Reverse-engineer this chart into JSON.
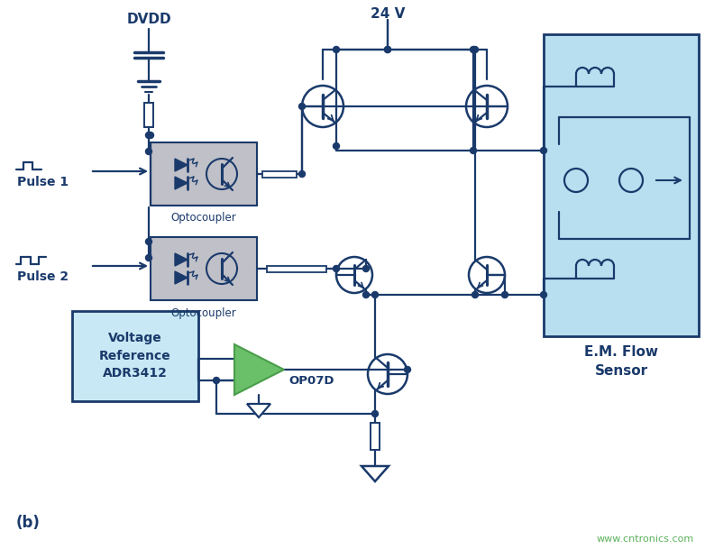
{
  "bg_color": "#ffffff",
  "dark_blue": "#1a3a6b",
  "light_blue": "#b8dff0",
  "light_blue2": "#c8e8f5",
  "gray": "#c0c0c8",
  "green": "#6abf69",
  "green_dark": "#4a9e4a",
  "url_color": "#5ab05a",
  "title": "(b)",
  "label_dvdd": "DVDD",
  "label_24v": "24 V",
  "label_pulse1": "Pulse 1",
  "label_pulse2": "Pulse 2",
  "label_opto1": "Optocoupler",
  "label_opto2": "Optocoupler",
  "label_vref": "Voltage\nReference\nADR3412",
  "label_op07d": "OP07D",
  "label_sensor": "E.M. Flow\nSensor",
  "label_url": "www.cntronics.com"
}
